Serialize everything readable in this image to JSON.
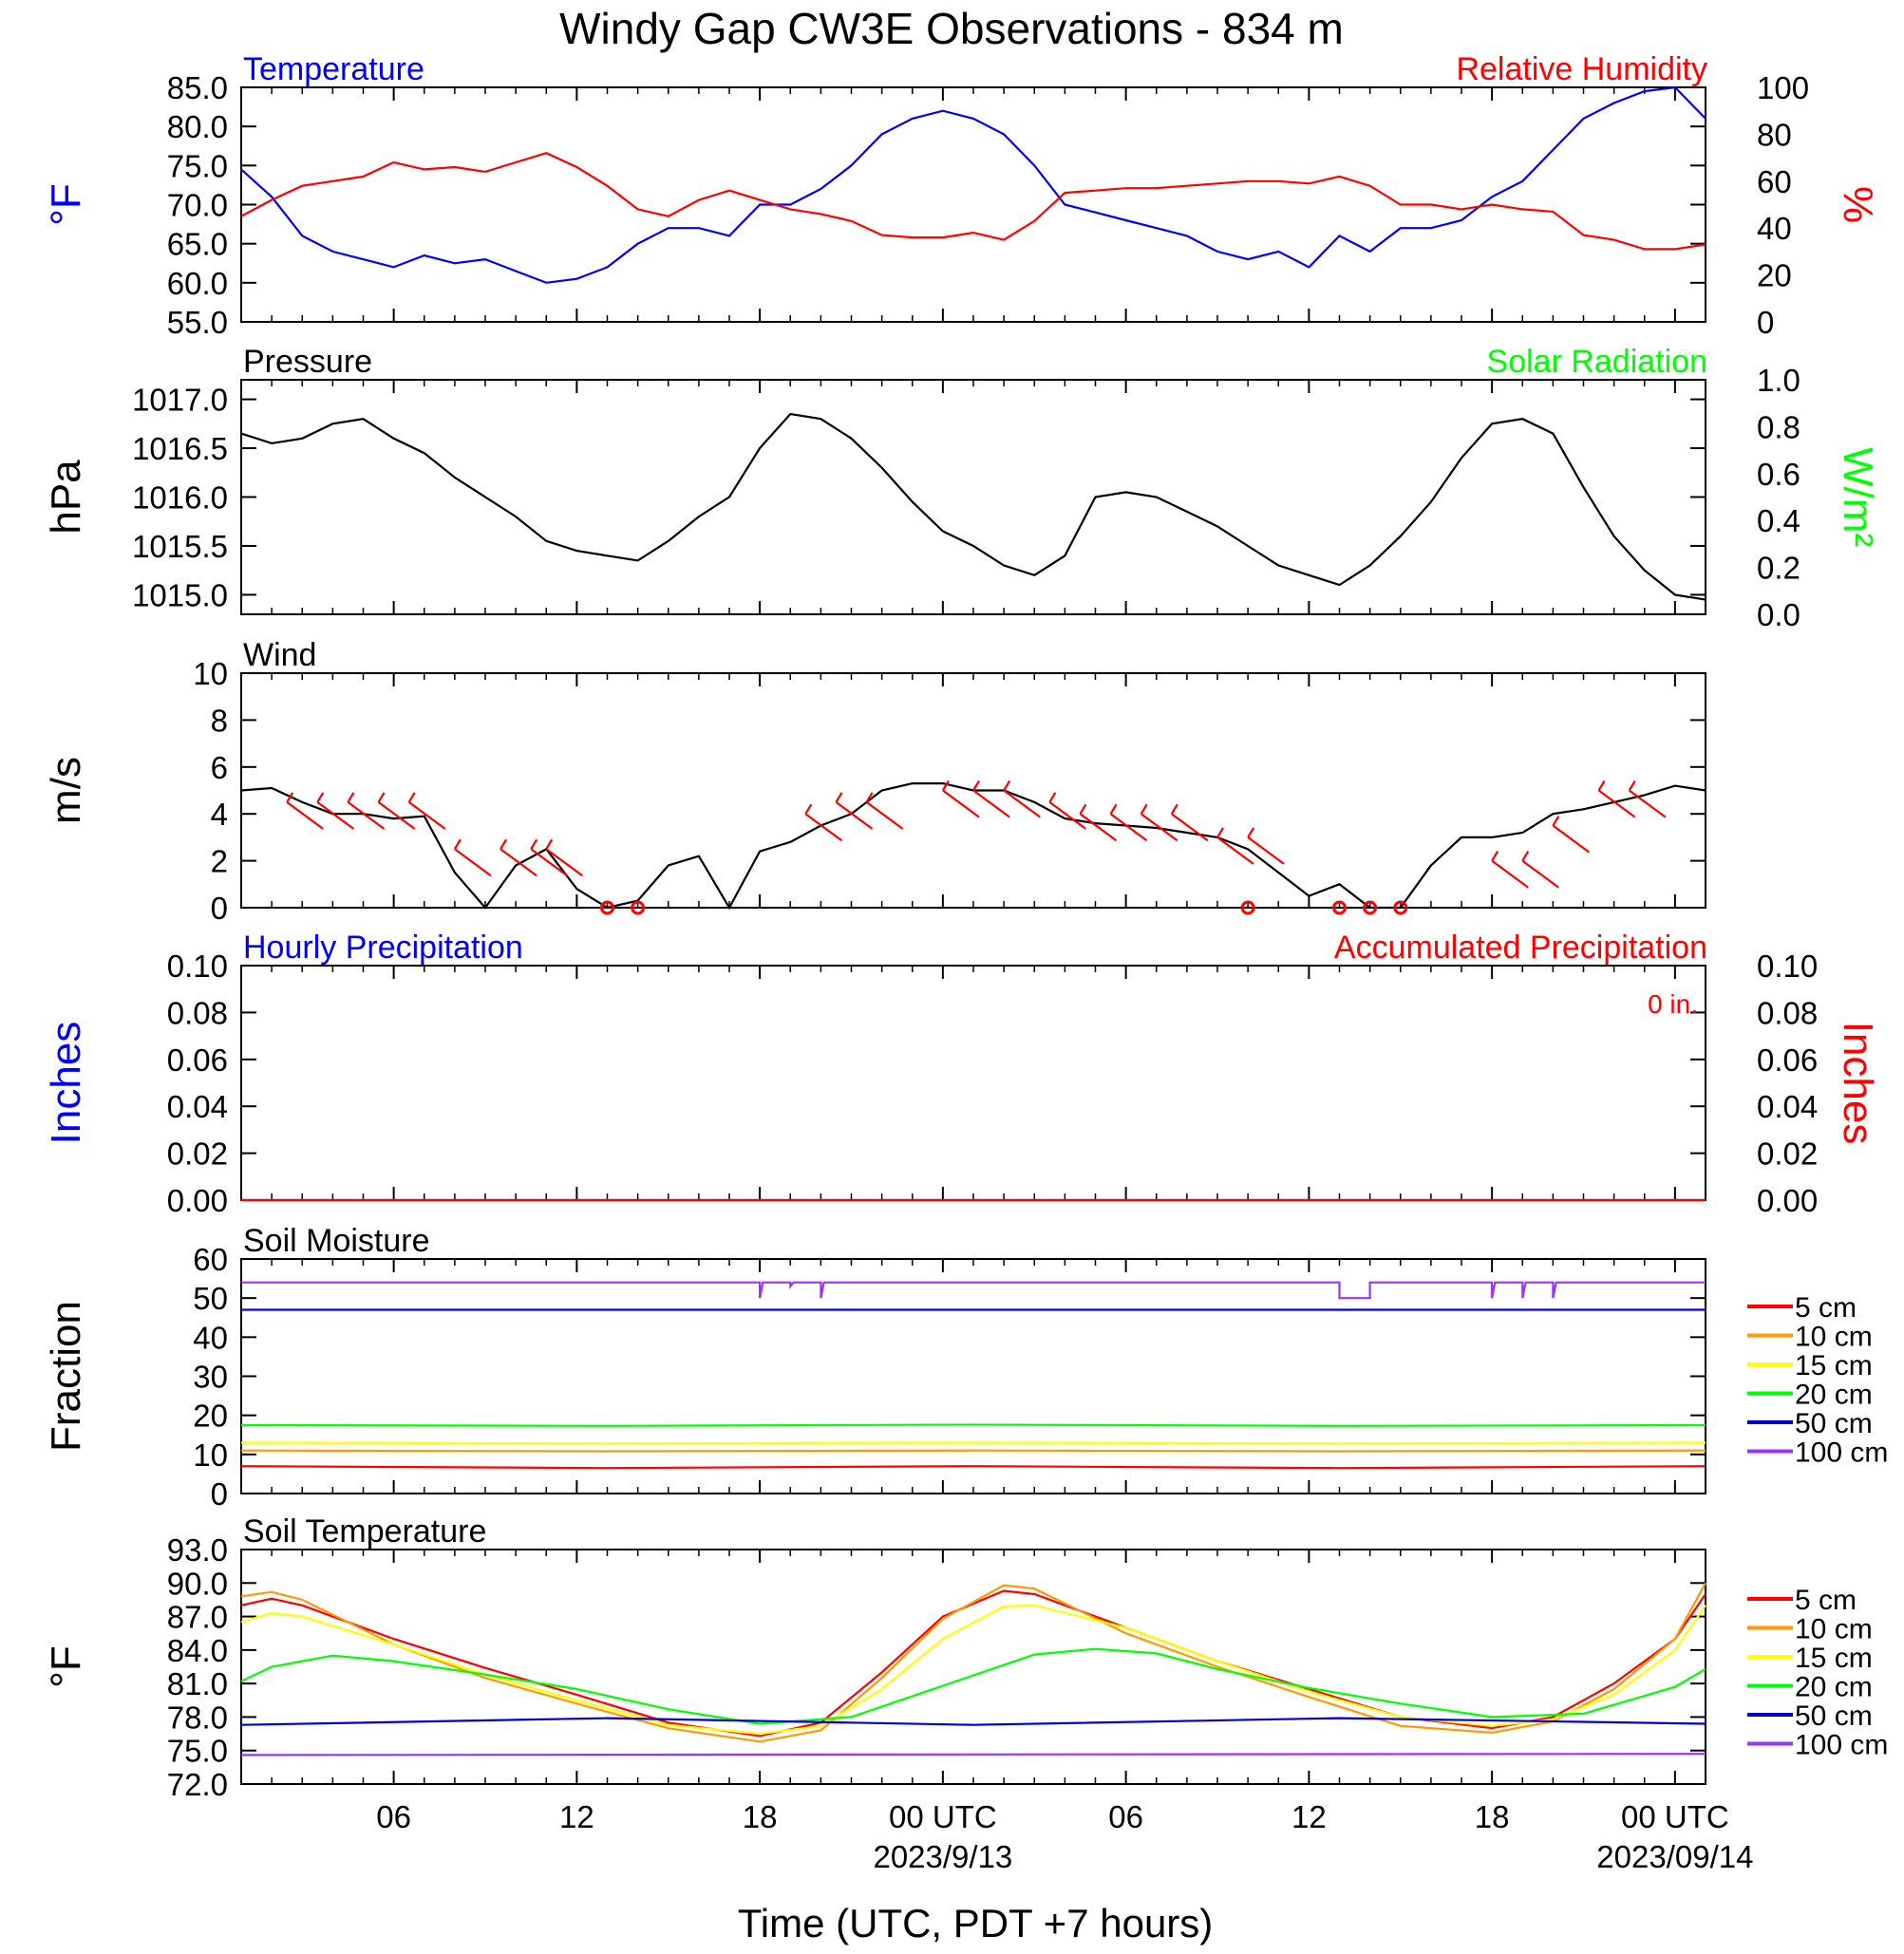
{
  "figure": {
    "title": "Windy Gap CW3E Observations - 834 m",
    "time_axis": {
      "ticks": [
        "06",
        "12",
        "18",
        "00 UTC",
        "06",
        "12",
        "18",
        "00 UTC"
      ],
      "tick_hours": [
        6,
        12,
        18,
        24,
        30,
        36,
        42,
        48
      ],
      "date_labels": [
        "2023/9/13",
        "2023/09/14"
      ],
      "date_label_hours": [
        24,
        48
      ],
      "xlabel": "Time (UTC, PDT +7 hours)",
      "range_hours": [
        1,
        49
      ]
    }
  },
  "colors": {
    "blue": "#0000ff",
    "red": "#ff0000",
    "green": "#00ff00",
    "black": "#000000",
    "orange": "#ff9900",
    "yellow": "#ffff00",
    "dark_blue": "#0000cc",
    "purple": "#9933ff"
  },
  "soil_depths": [
    "5 cm",
    "10 cm",
    "15 cm",
    "20 cm",
    "50 cm",
    "100 cm"
  ],
  "chart_data": [
    {
      "type": "line",
      "panel": "temperature-humidity",
      "title_left": "Temperature",
      "title_right": "Relative Humidity",
      "ylabel_left": "°F",
      "ylabel_right": "%",
      "ylim_left": [
        55,
        85
      ],
      "yticks_left": [
        "55.0",
        "60.0",
        "65.0",
        "70.0",
        "75.0",
        "80.0",
        "85.0"
      ],
      "ylim_right": [
        0,
        100
      ],
      "yticks_right": [
        "0",
        "20",
        "40",
        "60",
        "80",
        "100"
      ],
      "series": [
        {
          "axis": "left",
          "color": "#0000ff",
          "x": [
            1,
            2,
            3,
            4,
            5,
            6,
            7,
            8,
            9,
            10,
            11,
            12,
            13,
            14,
            15,
            16,
            17,
            18,
            19,
            20,
            21,
            22,
            23,
            24,
            25,
            26,
            27,
            28,
            29,
            30,
            31,
            32,
            33,
            34,
            35,
            36,
            37,
            38,
            39,
            40,
            41,
            42,
            43,
            44,
            45,
            46,
            47,
            48,
            49
          ],
          "y": [
            74.5,
            71,
            66,
            64,
            63,
            62,
            63.5,
            62.5,
            63,
            61.5,
            60,
            60.5,
            62,
            65,
            67,
            67,
            66,
            70,
            70,
            72,
            75,
            79,
            81,
            82,
            81,
            79,
            75,
            70,
            69,
            68,
            67,
            66,
            64,
            63,
            64,
            62,
            66,
            64,
            67,
            67,
            68,
            71,
            73,
            77,
            81,
            83,
            84.5,
            85,
            81
          ]
        },
        {
          "axis": "right",
          "color": "#ff0000",
          "x": [
            1,
            2,
            3,
            4,
            5,
            6,
            7,
            8,
            9,
            10,
            11,
            12,
            13,
            14,
            15,
            16,
            17,
            18,
            19,
            20,
            21,
            22,
            23,
            24,
            25,
            26,
            27,
            28,
            29,
            30,
            31,
            32,
            33,
            34,
            35,
            36,
            37,
            38,
            39,
            40,
            41,
            42,
            43,
            44,
            45,
            46,
            47,
            48,
            49
          ],
          "y": [
            45,
            52,
            58,
            60,
            62,
            68,
            65,
            66,
            64,
            68,
            72,
            66,
            58,
            48,
            45,
            52,
            56,
            52,
            48,
            46,
            43,
            37,
            36,
            36,
            38,
            35,
            43,
            55,
            56,
            57,
            57,
            58,
            59,
            60,
            60,
            59,
            62,
            58,
            50,
            50,
            48,
            50,
            48,
            47,
            37,
            35,
            31,
            31,
            33
          ]
        }
      ]
    },
    {
      "type": "line",
      "panel": "pressure-solar",
      "title_left": "Pressure",
      "title_right": "Solar Radiation",
      "ylabel_left": "hPa",
      "ylabel_right": "W/m²",
      "ylim_left": [
        1014.8,
        1017.2
      ],
      "yticks_left": [
        "1015.0",
        "1015.5",
        "1016.0",
        "1016.5",
        "1017.0"
      ],
      "ylim_right": [
        0,
        1
      ],
      "yticks_right": [
        "0.0",
        "0.2",
        "0.4",
        "0.6",
        "0.8",
        "1.0"
      ],
      "series": [
        {
          "axis": "left",
          "color": "#000000",
          "x": [
            1,
            2,
            3,
            4,
            5,
            6,
            7,
            8,
            9,
            10,
            11,
            12,
            13,
            14,
            15,
            16,
            17,
            18,
            19,
            20,
            21,
            22,
            23,
            24,
            25,
            26,
            27,
            28,
            29,
            30,
            31,
            32,
            33,
            34,
            35,
            36,
            37,
            38,
            39,
            40,
            41,
            42,
            43,
            44,
            45,
            46,
            47,
            48,
            49
          ],
          "y": [
            1016.65,
            1016.55,
            1016.6,
            1016.75,
            1016.8,
            1016.6,
            1016.45,
            1016.2,
            1016.0,
            1015.8,
            1015.55,
            1015.45,
            1015.4,
            1015.35,
            1015.55,
            1015.8,
            1016.0,
            1016.5,
            1016.85,
            1016.8,
            1016.6,
            1016.3,
            1015.95,
            1015.65,
            1015.5,
            1015.3,
            1015.2,
            1015.4,
            1016.0,
            1016.05,
            1016.0,
            1015.85,
            1015.7,
            1015.5,
            1015.3,
            1015.2,
            1015.1,
            1015.3,
            1015.6,
            1015.95,
            1016.4,
            1016.75,
            1016.8,
            1016.65,
            1016.1,
            1015.6,
            1015.25,
            1015.0,
            1014.95
          ]
        }
      ]
    },
    {
      "type": "line",
      "panel": "wind",
      "title_left": "Wind",
      "ylabel_left": "m/s",
      "ylim_left": [
        0,
        10
      ],
      "yticks_left": [
        "0",
        "2",
        "4",
        "6",
        "8",
        "10"
      ],
      "series": [
        {
          "axis": "left",
          "color": "#000000",
          "x": [
            1,
            2,
            3,
            4,
            5,
            6,
            7,
            8,
            9,
            10,
            11,
            12,
            13,
            14,
            15,
            16,
            17,
            18,
            19,
            20,
            21,
            22,
            23,
            24,
            25,
            26,
            27,
            28,
            29,
            30,
            31,
            32,
            33,
            34,
            35,
            36,
            37,
            38,
            39,
            40,
            41,
            42,
            43,
            44,
            45,
            46,
            47,
            48,
            49
          ],
          "y": [
            5,
            5.1,
            4.5,
            4.0,
            4.0,
            3.8,
            3.9,
            1.5,
            0,
            1.8,
            2.5,
            0.8,
            0,
            0.3,
            1.8,
            2.2,
            0,
            2.4,
            2.8,
            3.5,
            4.0,
            5.0,
            5.3,
            5.3,
            5.0,
            5.0,
            4.5,
            3.8,
            3.6,
            3.5,
            3.4,
            3.2,
            3.0,
            2.5,
            1.5,
            0.5,
            1.0,
            0,
            0,
            1.8,
            3.0,
            3.0,
            3.2,
            4.0,
            4.2,
            4.5,
            4.8,
            5.2,
            5.0
          ]
        }
      ],
      "barb_hours": [
        2.5,
        3.5,
        4.5,
        5.5,
        6.5,
        8,
        9.5,
        10.5,
        11,
        19.5,
        20.5,
        21.5,
        24,
        25,
        26,
        27.5,
        28.5,
        29.5,
        30.5,
        31.5,
        33,
        34,
        42,
        43,
        44,
        45.5,
        46.5
      ],
      "barb_speeds": [
        4.5,
        4.5,
        4.5,
        4.5,
        4.5,
        2.5,
        2.5,
        2.5,
        2.5,
        4.0,
        4.5,
        4.5,
        5.0,
        5.0,
        5.0,
        4.5,
        4.0,
        4.0,
        4.0,
        4.0,
        3.0,
        3.0,
        2.0,
        2.0,
        3.5,
        5.0,
        5.0
      ],
      "calm_hours": [
        13,
        14,
        34,
        37,
        38,
        39
      ]
    },
    {
      "type": "line",
      "panel": "precipitation",
      "title_left": "Hourly Precipitation",
      "title_right": "Accumulated Precipitation",
      "annotation": "0 in.",
      "ylabel_left": "Inches",
      "ylabel_right": "Inches",
      "ylim_left": [
        0,
        0.1
      ],
      "yticks_left": [
        "0.00",
        "0.02",
        "0.04",
        "0.06",
        "0.08",
        "0.10"
      ],
      "ylim_right": [
        0,
        0.1
      ],
      "yticks_right": [
        "0.00",
        "0.02",
        "0.04",
        "0.06",
        "0.08",
        "0.10"
      ],
      "series": [
        {
          "axis": "left",
          "color": "#0000ff",
          "x": [
            1,
            49
          ],
          "y": [
            0,
            0
          ]
        },
        {
          "axis": "right",
          "color": "#ff0000",
          "x": [
            1,
            49
          ],
          "y": [
            0,
            0
          ]
        }
      ]
    },
    {
      "type": "line",
      "panel": "soil-moisture",
      "title_left": "Soil Moisture",
      "ylabel_left": "Fraction",
      "ylim_left": [
        0,
        60
      ],
      "yticks_left": [
        "0",
        "10",
        "20",
        "30",
        "40",
        "50",
        "60"
      ],
      "series": [
        {
          "name": "5 cm",
          "color": "#ff0000",
          "x": [
            1,
            13,
            25,
            37,
            49
          ],
          "y": [
            7,
            6.5,
            7,
            6.5,
            7
          ]
        },
        {
          "name": "10 cm",
          "color": "#ff9900",
          "x": [
            1,
            13,
            25,
            37,
            49
          ],
          "y": [
            11,
            10.8,
            11,
            10.8,
            11
          ]
        },
        {
          "name": "15 cm",
          "color": "#ffff00",
          "x": [
            1,
            13,
            25,
            37,
            49
          ],
          "y": [
            13,
            12.8,
            13,
            12.8,
            13
          ]
        },
        {
          "name": "20 cm",
          "color": "#00ff00",
          "x": [
            1,
            13,
            25,
            37,
            49
          ],
          "y": [
            17.5,
            17.3,
            17.6,
            17.3,
            17.5
          ]
        },
        {
          "name": "50 cm",
          "color": "#0000cc",
          "x": [
            1,
            49
          ],
          "y": [
            47,
            47
          ]
        },
        {
          "name": "100 cm",
          "color": "#9933ff",
          "x": [
            1,
            18,
            18,
            18.1,
            19,
            19,
            19.1,
            20,
            20,
            20.1,
            37,
            37,
            38,
            38,
            42,
            42,
            42.1,
            43,
            43,
            43.1,
            44,
            44,
            44.1,
            49
          ],
          "y": [
            54,
            54,
            50,
            54,
            54,
            53,
            54,
            54,
            50,
            54,
            54,
            50,
            50,
            54,
            54,
            50,
            54,
            54,
            50,
            54,
            54,
            50,
            54,
            54
          ]
        }
      ]
    },
    {
      "type": "line",
      "panel": "soil-temperature",
      "title_left": "Soil Temperature",
      "ylabel_left": "°F",
      "ylim_left": [
        72,
        93
      ],
      "yticks_left": [
        "72.0",
        "75.0",
        "78.0",
        "81.0",
        "84.0",
        "87.0",
        "90.0",
        "93.0"
      ],
      "series": [
        {
          "name": "5 cm",
          "color": "#ff0000",
          "x": [
            1,
            2,
            3,
            6,
            9,
            12,
            15,
            18,
            20,
            22,
            24,
            26,
            27,
            30,
            33,
            36,
            39,
            42,
            44,
            46,
            48,
            49
          ],
          "y": [
            88,
            88.6,
            88,
            85,
            82.4,
            80,
            77.5,
            76.3,
            77.5,
            82,
            87,
            89.3,
            89,
            86,
            83,
            80.5,
            78,
            77,
            78,
            81,
            85,
            89
          ]
        },
        {
          "name": "10 cm",
          "color": "#ff9900",
          "x": [
            1,
            2,
            3,
            6,
            9,
            12,
            15,
            18,
            20,
            22,
            24,
            26,
            27,
            30,
            33,
            36,
            39,
            42,
            44,
            46,
            48,
            49
          ],
          "y": [
            88.8,
            89.2,
            88.5,
            84.5,
            81.5,
            79.2,
            77,
            75.8,
            76.8,
            81.5,
            86.8,
            89.8,
            89.5,
            85.5,
            82.5,
            79.8,
            77.2,
            76.6,
            77.6,
            80.5,
            85,
            90
          ]
        },
        {
          "name": "15 cm",
          "color": "#ffff00",
          "x": [
            1,
            2,
            3,
            6,
            9,
            12,
            15,
            18,
            20,
            22,
            24,
            26,
            27,
            30,
            33,
            36,
            39,
            42,
            44,
            46,
            48,
            49
          ],
          "y": [
            86.5,
            87.3,
            87,
            84.5,
            81.8,
            79.5,
            77.3,
            76.5,
            77.2,
            80.5,
            85,
            87.9,
            88,
            86,
            83,
            80.3,
            78,
            77.2,
            77.8,
            80,
            84,
            88
          ]
        },
        {
          "name": "20 cm",
          "color": "#00ff00",
          "x": [
            1,
            2,
            4,
            6,
            9,
            12,
            15,
            18,
            21,
            24,
            27,
            29,
            31,
            33,
            36,
            39,
            42,
            45,
            48,
            49
          ],
          "y": [
            81.2,
            82.5,
            83.5,
            83,
            81.8,
            80.5,
            78.7,
            77.4,
            78,
            80.8,
            83.6,
            84.1,
            83.7,
            82.3,
            80.6,
            79.2,
            78,
            78.3,
            80.7,
            82.3
          ]
        },
        {
          "name": "50 cm",
          "color": "#0000cc",
          "x": [
            1,
            13,
            25,
            37,
            49
          ],
          "y": [
            77.3,
            77.9,
            77.3,
            77.9,
            77.4
          ]
        },
        {
          "name": "100 cm",
          "color": "#9933ff",
          "x": [
            1,
            49
          ],
          "y": [
            74.6,
            74.7
          ]
        }
      ]
    }
  ]
}
